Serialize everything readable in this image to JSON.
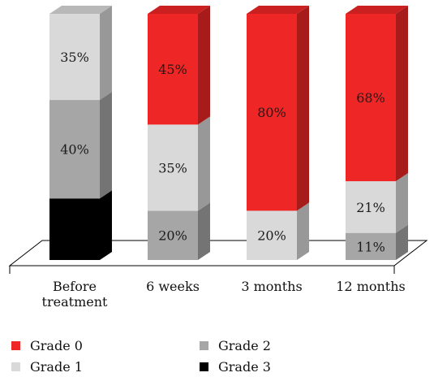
{
  "chart_data": {
    "type": "bar",
    "stacked": true,
    "style": "3d-stacked-percent",
    "categories": [
      "Before treatment",
      "6 weeks",
      "3 months",
      "12 months"
    ],
    "category_label_lines": [
      [
        "Before",
        "treatment"
      ],
      [
        "6 weeks"
      ],
      [
        "3 months"
      ],
      [
        "12 months"
      ]
    ],
    "series": [
      {
        "name": "Grade 3",
        "values": [
          25,
          0,
          0,
          0
        ],
        "labels": [
          "",
          "",
          "",
          ""
        ],
        "color": "#000000"
      },
      {
        "name": "Grade 2",
        "values": [
          40,
          20,
          0,
          11
        ],
        "labels": [
          "40%",
          "20%",
          "",
          "11%"
        ],
        "color": "#a6a6a6"
      },
      {
        "name": "Grade 1",
        "values": [
          35,
          35,
          20,
          21
        ],
        "labels": [
          "35%",
          "35%",
          "20%",
          "21%"
        ],
        "color": "#d9d9d9"
      },
      {
        "name": "Grade 0",
        "values": [
          0,
          45,
          80,
          68
        ],
        "labels": [
          "",
          "45%",
          "80%",
          "68%"
        ],
        "color": "#ef2626"
      }
    ],
    "ylim": [
      0,
      100
    ],
    "title": "",
    "xlabel": "",
    "ylabel": "",
    "grid": false,
    "legend": {
      "position": "bottom",
      "columns": [
        [
          "Grade 0",
          "Grade 1"
        ],
        [
          "Grade 2",
          "Grade 3"
        ]
      ]
    }
  }
}
